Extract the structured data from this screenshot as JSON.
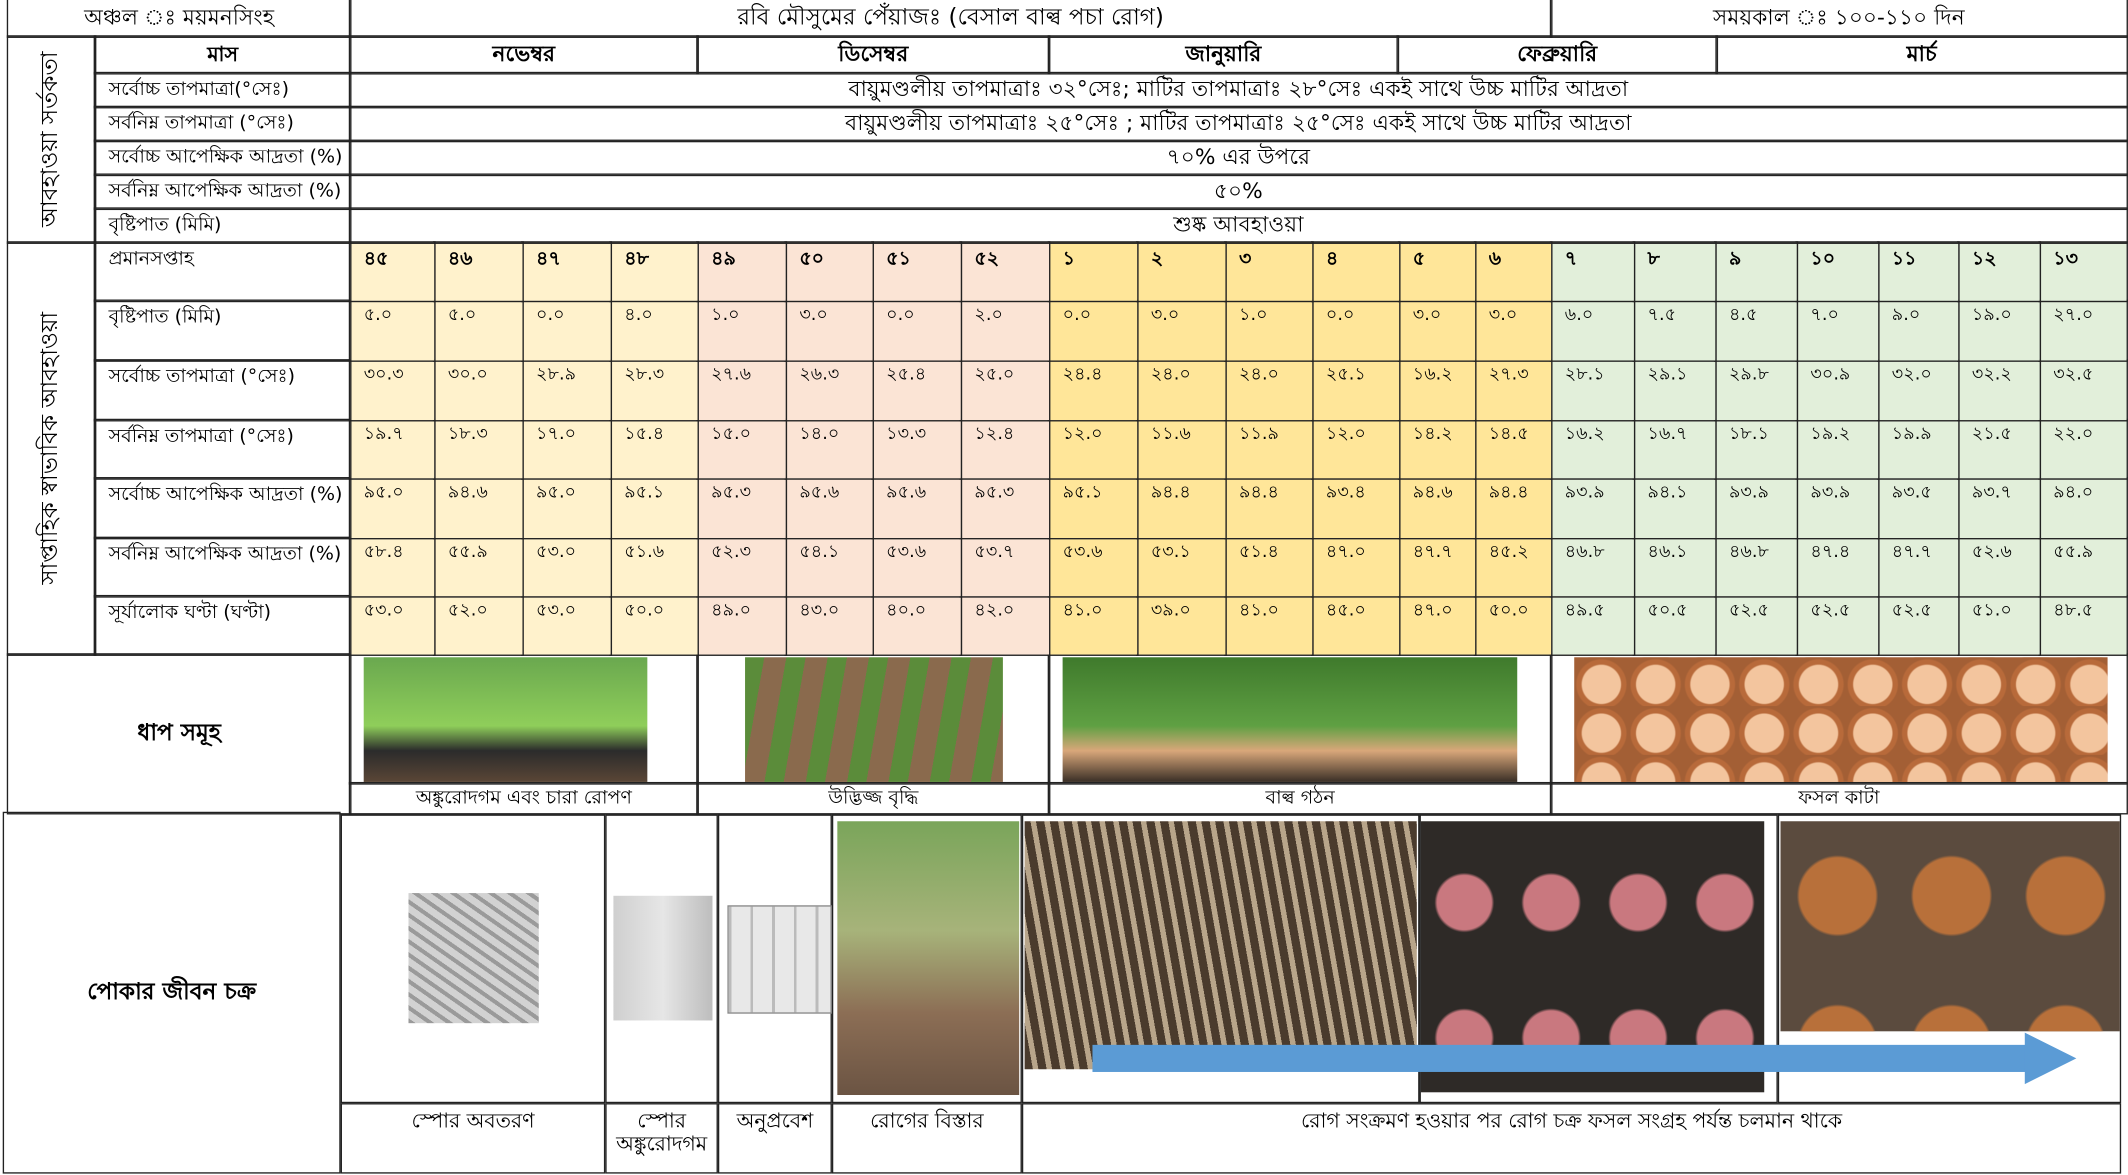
{
  "header": {
    "region": "অঞ্চল ঃ ময়মনসিংহ",
    "title": "রবি মৌসুমের পেঁয়াজঃ (বেসাল বাল্ব পচা রোগ)",
    "duration": "সময়কাল ঃ ১০০-১১০ দিন"
  },
  "sections": {
    "weather_alert": "আবহাওয়া সর্তকতা",
    "weekly_weather": "সাপ্তাহিক স্বাভাবিক আবহাওয়া"
  },
  "months": {
    "label": "মাস",
    "names": [
      "নভেম্বর",
      "ডিসেম্বর",
      "জানুয়ারি",
      "ফেব্রুয়ারি",
      "মার্চ"
    ]
  },
  "alerts": [
    {
      "label": "সর্বোচ্চ তাপমাত্রা(°সেঃ)",
      "text": "বায়ুমণ্ডলীয় তাপমাত্রাঃ ৩২°সেঃ; মাটির তাপমাত্রাঃ ২৮°সেঃ একই সাথে উচ্চ মাটির আদ্রতা"
    },
    {
      "label": "সর্বনিম্ন তাপমাত্রা (°সেঃ)",
      "text": "বায়ুমণ্ডলীয় তাপমাত্রাঃ ২৫°সেঃ ; মাটির তাপমাত্রাঃ ২৫°সেঃ  একই সাথে উচ্চ মাটির আদ্রতা"
    },
    {
      "label": "সর্বোচ্চ আপেক্ষিক আদ্রতা (%)",
      "text": "৭০% এর উপরে"
    },
    {
      "label": "সর্বনিম্ন আপেক্ষিক আদ্রতা (%)",
      "text": "৫০%"
    },
    {
      "label": "বৃষ্টিপাত (মিমি)",
      "text": "শুষ্ক আবহাওয়া"
    }
  ],
  "weekly": {
    "week_label": "প্রমানসপ্তাহ",
    "weeks": [
      "৪৫",
      "৪৬",
      "৪৭",
      "৪৮",
      "৪৯",
      "৫০",
      "৫১",
      "৫২",
      "১",
      "২",
      "৩",
      "৪",
      "৫",
      "৬",
      "৭",
      "৮",
      "৯",
      "১০",
      "১১",
      "১২",
      "১৩"
    ],
    "rows": [
      {
        "label": "বৃষ্টিপাত (মিমি)",
        "values": [
          "৫.০",
          "৫.০",
          "০.০",
          "৪.০",
          "১.০",
          "৩.০",
          "০.০",
          "২.০",
          "০.০",
          "৩.০",
          "১.০",
          "০.০",
          "৩.০",
          "৩.০",
          "৬.০",
          "৭.৫",
          "৪.৫",
          "৭.০",
          "৯.০",
          "১৯.০",
          "২৭.০"
        ]
      },
      {
        "label": "সর্বোচ্চ তাপমাত্রা (°সেঃ)",
        "values": [
          "৩০.৩",
          "৩০.০",
          "২৮.৯",
          "২৮.৩",
          "২৭.৬",
          "২৬.৩",
          "২৫.৪",
          "২৫.০",
          "২৪.৪",
          "২৪.০",
          "২৪.০",
          "২৫.১",
          "১৬.২",
          "২৭.৩",
          "২৮.১",
          "২৯.১",
          "২৯.৮",
          "৩০.৯",
          "৩২.০",
          "৩২.২",
          "৩২.৫"
        ]
      },
      {
        "label": "সর্বনিম্ন তাপমাত্রা (°সেঃ)",
        "values": [
          "১৯.৭",
          "১৮.৩",
          "১৭.০",
          "১৫.৪",
          "১৫.০",
          "১৪.০",
          "১৩.৩",
          "১২.৪",
          "১২.০",
          "১১.৬",
          "১১.৯",
          "১২.০",
          "১৪.২",
          "১৪.৫",
          "১৬.২",
          "১৬.৭",
          "১৮.১",
          "১৯.২",
          "১৯.৯",
          "২১.৫",
          "২২.০"
        ]
      },
      {
        "label": "সর্বোচ্চ আপেক্ষিক আদ্রতা (%)",
        "values": [
          "৯৫.০",
          "৯৪.৬",
          "৯৫.০",
          "৯৫.১",
          "৯৫.৩",
          "৯৫.৬",
          "৯৫.৬",
          "৯৫.৩",
          "৯৫.১",
          "৯৪.৪",
          "৯৪.৪",
          "৯৩.৪",
          "৯৪.৬",
          "৯৪.৪",
          "৯৩.৯",
          "৯৪.১",
          "৯৩.৯",
          "৯৩.৯",
          "৯৩.৫",
          "৯৩.৭",
          "৯৪.০"
        ]
      },
      {
        "label": "সর্বনিম্ন আপেক্ষিক আদ্রতা (%)",
        "values": [
          "৫৮.৪",
          "৫৫.৯",
          "৫৩.০",
          "৫১.৬",
          "৫২.৩",
          "৫৪.১",
          "৫৩.৬",
          "৫৩.৭",
          "৫৩.৬",
          "৫৩.১",
          "৫১.৪",
          "৪৭.০",
          "৪৭.৭",
          "৪৫.২",
          "৪৬.৮",
          "৪৬.১",
          "৪৬.৮",
          "৪৭.৪",
          "৪৭.৭",
          "৫২.৬",
          "৫৫.৯"
        ]
      },
      {
        "label": "সূর্যালোক ঘণ্টা (ঘণ্টা)",
        "values": [
          "৫৩.০",
          "৫২.০",
          "৫৩.০",
          "৫০.০",
          "৪৯.০",
          "৪৩.০",
          "৪০.০",
          "৪২.০",
          "৪১.০",
          "৩৯.০",
          "৪১.০",
          "৪৫.০",
          "৪৭.০",
          "৫০.০",
          "৪৯.৫",
          "৫০.৫",
          "৫২.৫",
          "৫২.৫",
          "৫২.৫",
          "৫১.০",
          "৪৮.৫"
        ]
      }
    ]
  },
  "stages": {
    "label": "ধাপ সমূহ",
    "names": [
      "অঙ্কুরোদগম এবং চারা রোপণ",
      "উদ্ভিজ্জ বৃদ্ধি",
      "বাল্ব গঠন",
      "ফসল কাটা"
    ]
  },
  "life_cycle": {
    "label": "পোকার জীবন চক্র",
    "steps": [
      "স্পোর অবতরণ",
      "স্পোর অঙ্কুরোদগম",
      "অনুপ্রবেশ",
      "রোগের বিস্তার",
      "রোগ সংক্রমণ হওয়ার পর রোগ চক্র ফসল সংগ্রহ পর্যন্ত চলমান থাকে"
    ]
  }
}
